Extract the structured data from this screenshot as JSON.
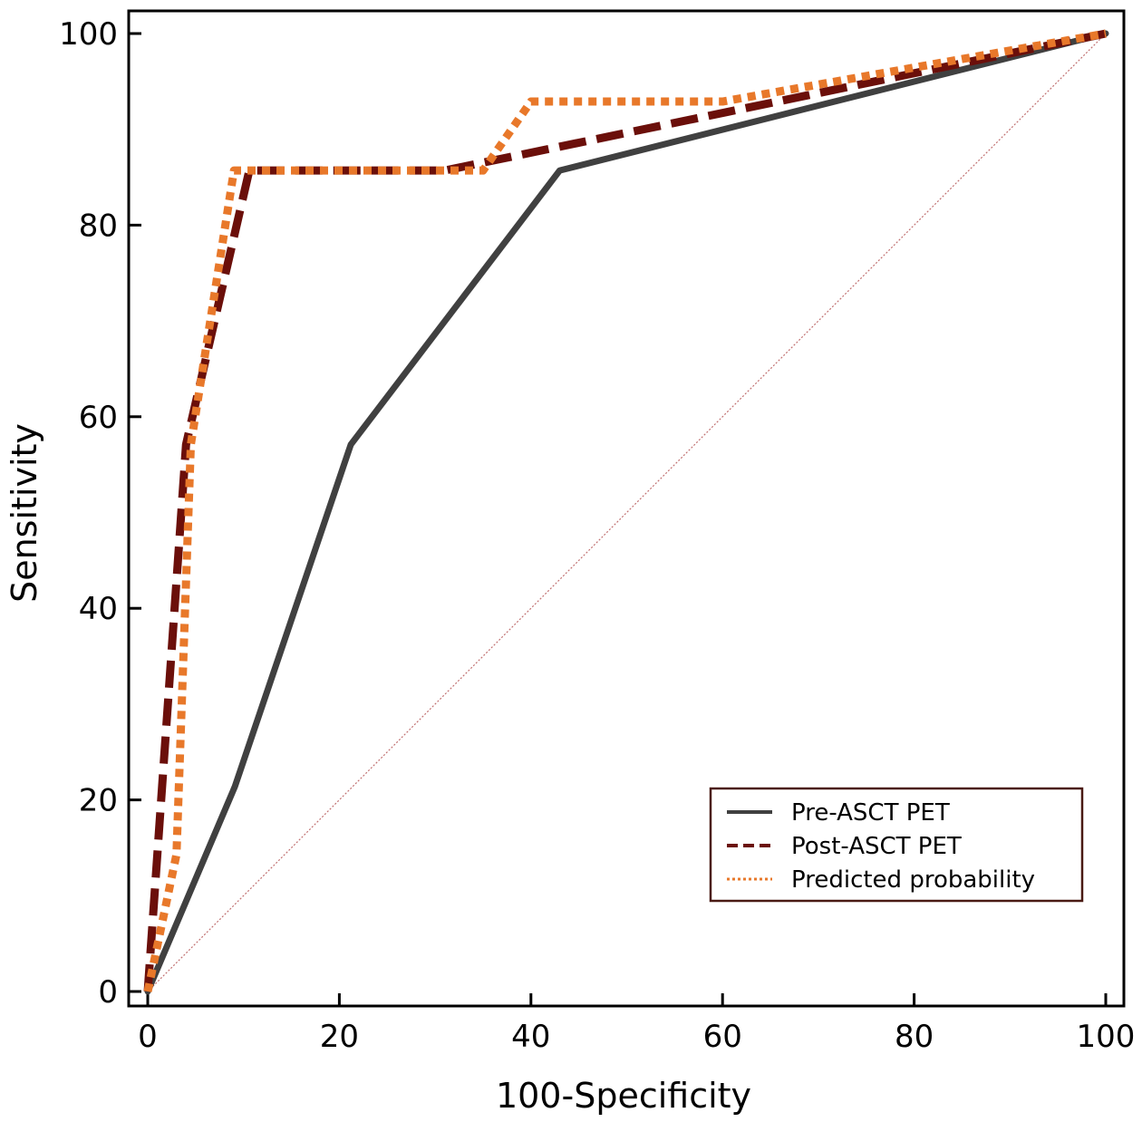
{
  "chart_data": {
    "type": "line",
    "title": "",
    "xlabel": "100-Specificity",
    "ylabel": "Sensitivity",
    "xlim": [
      0,
      100
    ],
    "ylim": [
      0,
      100
    ],
    "xticks": [
      0,
      20,
      40,
      60,
      80,
      100
    ],
    "yticks": [
      0,
      20,
      40,
      60,
      80,
      100
    ],
    "grid": false,
    "legend_position": "bottom-right",
    "series": [
      {
        "name": "Pre-ASCT PET",
        "style": "solid",
        "color": "#404040",
        "x": [
          0,
          9.1,
          21.2,
          43.0,
          100
        ],
        "y": [
          0,
          21.4,
          57.1,
          85.7,
          100
        ]
      },
      {
        "name": "Post-ASCT PET",
        "style": "dashed",
        "color": "#6b0f0a",
        "x": [
          0,
          4.0,
          10.6,
          31.0,
          100
        ],
        "y": [
          0,
          57.1,
          85.7,
          85.7,
          100
        ]
      },
      {
        "name": "Predicted probability",
        "style": "dotted",
        "color": "#e8782a",
        "x": [
          0,
          3.0,
          4.5,
          9.0,
          30.5,
          35.0,
          40.0,
          60.0,
          100
        ],
        "y": [
          0,
          14.3,
          57.1,
          85.7,
          85.7,
          85.7,
          92.9,
          92.9,
          100
        ]
      }
    ],
    "reference_line": {
      "color": "#c07070"
    }
  }
}
